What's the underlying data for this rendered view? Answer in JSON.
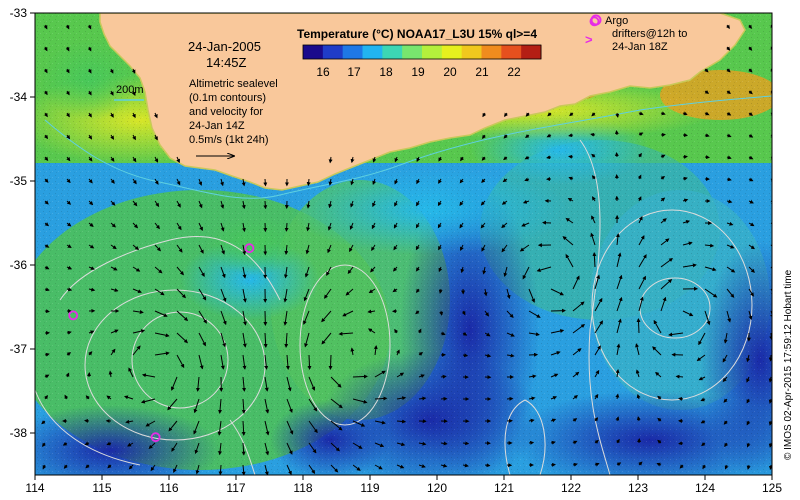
{
  "colorbar": {
    "title": "Temperature (°C) NOAA17_L3U 15% ql>=4",
    "ticks": [
      "16",
      "17",
      "18",
      "19",
      "20",
      "21",
      "22"
    ],
    "colors": [
      "#1a0a8c",
      "#1f3cc8",
      "#1e78e6",
      "#22b4f0",
      "#3cd6b4",
      "#78e66e",
      "#b4f03c",
      "#e6f01e",
      "#f0c81e",
      "#f08c1e",
      "#e6501e",
      "#b41e14"
    ]
  },
  "annotations": {
    "date": "24-Jan-2005",
    "time": "14:45Z",
    "contour_label": "200m",
    "altimetry_lines": [
      "Altimetric sealevel",
      "(0.1m contours)",
      "and velocity for",
      "24-Jan 14Z",
      "0.5m/s (1kt 24h)"
    ],
    "argo_lines": [
      "Argo",
      "drifters@12h to",
      "24-Jan 18Z"
    ]
  },
  "axes": {
    "x_ticks": [
      "114",
      "115",
      "116",
      "117",
      "118",
      "119",
      "120",
      "121",
      "122",
      "123",
      "124",
      "125"
    ],
    "y_ticks": [
      "-33",
      "-34",
      "-35",
      "-36",
      "-37",
      "-38"
    ]
  },
  "credit": "© IMOS 02-Apr-2015 17:59:12 Hobart time",
  "colors": {
    "land": "#f9c89b",
    "contour": "#dcdcdc",
    "isobath": "#5fd0e0",
    "argo": "#e62ce6"
  },
  "map_features": {
    "eddies": [
      {
        "lon": 115.9,
        "lat": -37.2,
        "rx": 0.7,
        "ry": 0.45
      },
      {
        "lon": 118.6,
        "lat": -37.1,
        "rx": 0.6,
        "ry": 0.8
      },
      {
        "lon": 123.6,
        "lat": -36.6,
        "rx": 0.9,
        "ry": 1.1
      },
      {
        "lon": 121.8,
        "lat": -36.2,
        "rx": 1.2,
        "ry": 1.6
      }
    ],
    "argo_drifters": [
      {
        "lon": 114.57,
        "lat": -36.6
      },
      {
        "lon": 115.8,
        "lat": -38.05
      },
      {
        "lon": 117.2,
        "lat": -35.8
      },
      {
        "lon": 122.35,
        "lat": -33.1
      }
    ]
  }
}
